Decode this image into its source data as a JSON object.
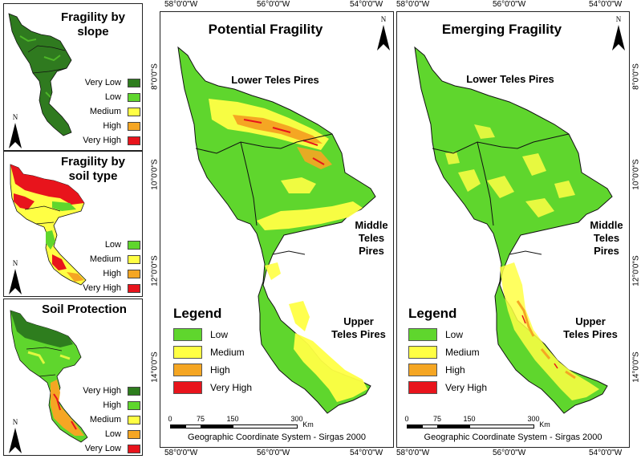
{
  "small_maps": [
    {
      "title_lines": [
        "Fragility by",
        "slope"
      ],
      "legend": [
        {
          "label": "Very Low",
          "color": "#2e7d1e"
        },
        {
          "label": "Low",
          "color": "#5fd62d"
        },
        {
          "label": "Medium",
          "color": "#ffff44"
        },
        {
          "label": "High",
          "color": "#f5a623"
        },
        {
          "label": "Very High",
          "color": "#e8141c"
        }
      ],
      "north": "N"
    },
    {
      "title_lines": [
        "Fragility by",
        "soil type"
      ],
      "legend": [
        {
          "label": "Low",
          "color": "#5fd62d"
        },
        {
          "label": "Medium",
          "color": "#ffff44"
        },
        {
          "label": "High",
          "color": "#f5a623"
        },
        {
          "label": "Very High",
          "color": "#e8141c"
        }
      ],
      "north": "N"
    },
    {
      "title_lines": [
        "Soil Protection"
      ],
      "legend": [
        {
          "label": "Very High",
          "color": "#2e7d1e"
        },
        {
          "label": "High",
          "color": "#5fd62d"
        },
        {
          "label": "Medium",
          "color": "#ffff44"
        },
        {
          "label": "Low",
          "color": "#f5a623"
        },
        {
          "label": "Very Low",
          "color": "#e8141c"
        }
      ],
      "north": "N"
    }
  ],
  "big_maps": [
    {
      "title": "Potential Fragility",
      "regions": {
        "lower": "Lower Teles Pires",
        "middle_lines": [
          "Middle",
          "Teles",
          "Pires"
        ],
        "upper_lines": [
          "Upper",
          "Teles Pires"
        ]
      },
      "legend_title": "Legend",
      "legend": [
        {
          "label": "Low",
          "color": "#5fd62d"
        },
        {
          "label": "Medium",
          "color": "#ffff44"
        },
        {
          "label": "High",
          "color": "#f5a623"
        },
        {
          "label": "Very High",
          "color": "#e8141c"
        }
      ],
      "scale_ticks": [
        "0",
        "75",
        "150",
        "300"
      ],
      "scale_unit": "Km",
      "footer": "Geographic Coordinate System - Sirgas 2000",
      "north": "N"
    },
    {
      "title": "Emerging Fragility",
      "regions": {
        "lower": "Lower Teles Pires",
        "middle_lines": [
          "Middle",
          "Teles",
          "Pires"
        ],
        "upper_lines": [
          "Upper",
          "Teles Pires"
        ]
      },
      "legend_title": "Legend",
      "legend": [
        {
          "label": "Low",
          "color": "#5fd62d"
        },
        {
          "label": "Medium",
          "color": "#ffff44"
        },
        {
          "label": "High",
          "color": "#f5a623"
        },
        {
          "label": "Very High",
          "color": "#e8141c"
        }
      ],
      "scale_ticks": [
        "0",
        "75",
        "150",
        "300"
      ],
      "scale_unit": "Km",
      "footer": "Geographic Coordinate System - Sirgas 2000",
      "north": "N"
    }
  ],
  "coordinates": {
    "lon": [
      "58°0'0\"W",
      "56°0'0\"W",
      "54°0'0\"W"
    ],
    "lat": [
      "8°0'0\"S",
      "10°0'0\"S",
      "12°0'0\"S",
      "14°0'0\"S"
    ]
  }
}
